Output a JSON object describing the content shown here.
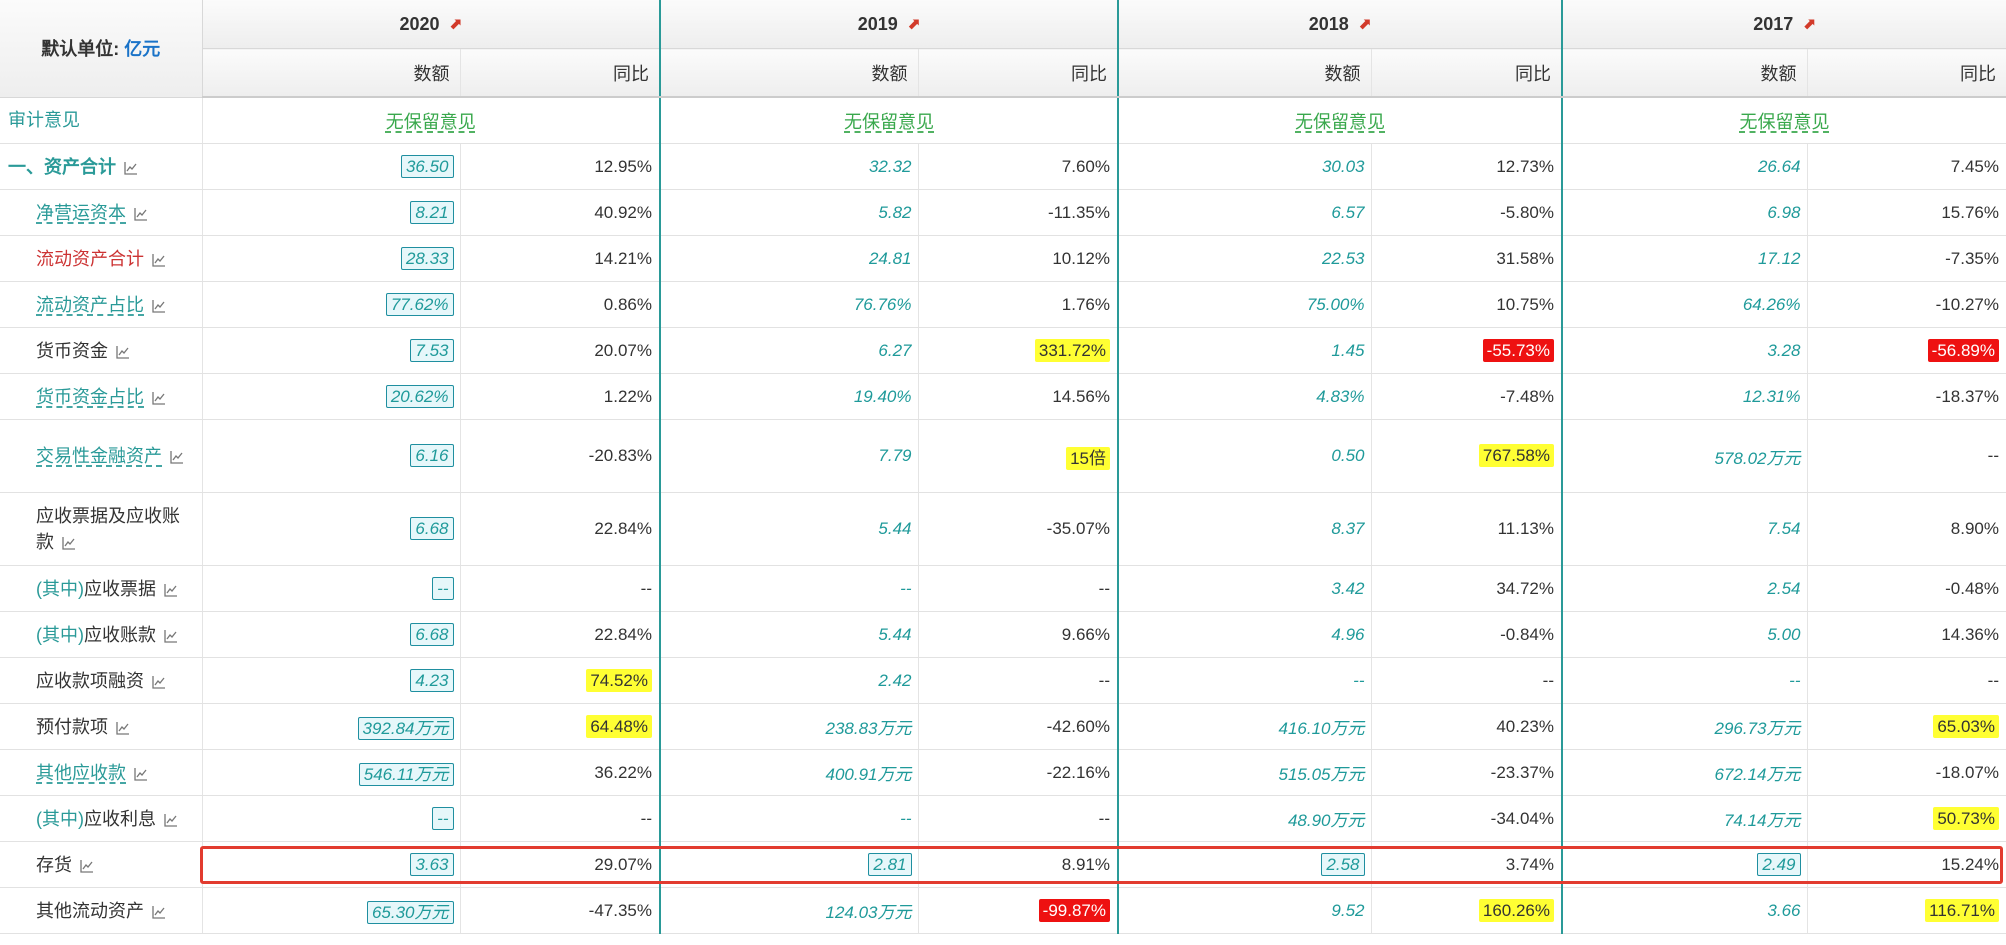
{
  "header": {
    "unit_label": "默认单位:",
    "unit_value": "亿元",
    "years": [
      {
        "year": "2020",
        "amount_label": "数额",
        "yoy_label": "同比"
      },
      {
        "year": "2019",
        "amount_label": "数额",
        "yoy_label": "同比"
      },
      {
        "year": "2018",
        "amount_label": "数额",
        "yoy_label": "同比"
      },
      {
        "year": "2017",
        "amount_label": "数额",
        "yoy_label": "同比"
      }
    ]
  },
  "audit_row": {
    "label": "审计意见",
    "opinions": [
      "无保留意见",
      "无保留意见",
      "无保留意见",
      "无保留意见"
    ]
  },
  "rows": [
    {
      "name": "total-assets",
      "prefix": "",
      "label": "一、资产合计",
      "style": "bold",
      "cells": [
        [
          "36.50",
          "12.95%"
        ],
        [
          "32.32",
          "7.60%"
        ],
        [
          "30.03",
          "12.73%"
        ],
        [
          "26.64",
          "7.45%"
        ]
      ]
    },
    {
      "name": "net-working-capital",
      "prefix": "",
      "label": "净营运资本",
      "style": "link",
      "cells": [
        [
          "8.21",
          "40.92%"
        ],
        [
          "5.82",
          "-11.35%"
        ],
        [
          "6.57",
          "-5.80%"
        ],
        [
          "6.98",
          "15.76%"
        ]
      ]
    },
    {
      "name": "total-current-assets",
      "prefix": "",
      "label": "流动资产合计",
      "style": "red",
      "cells": [
        [
          "28.33",
          "14.21%"
        ],
        [
          "24.81",
          "10.12%"
        ],
        [
          "22.53",
          "31.58%"
        ],
        [
          "17.12",
          "-7.35%"
        ]
      ]
    },
    {
      "name": "current-assets-ratio",
      "prefix": "",
      "label": "流动资产占比",
      "style": "link",
      "cells": [
        [
          "77.62%",
          "0.86%"
        ],
        [
          "76.76%",
          "1.76%"
        ],
        [
          "75.00%",
          "10.75%"
        ],
        [
          "64.26%",
          "-10.27%"
        ]
      ]
    },
    {
      "name": "cash",
      "prefix": "",
      "label": "货币资金",
      "style": "plain",
      "cells": [
        [
          "7.53",
          "20.07%"
        ],
        [
          "6.27",
          "331.72%"
        ],
        [
          "1.45",
          "-55.73%"
        ],
        [
          "3.28",
          "-56.89%"
        ]
      ]
    },
    {
      "name": "cash-ratio",
      "prefix": "",
      "label": "货币资金占比",
      "style": "link",
      "cells": [
        [
          "20.62%",
          "1.22%"
        ],
        [
          "19.40%",
          "14.56%"
        ],
        [
          "4.83%",
          "-7.48%"
        ],
        [
          "12.31%",
          "-18.37%"
        ]
      ]
    },
    {
      "name": "trading-financial-assets",
      "prefix": "",
      "label": "交易性金融资产",
      "style": "link",
      "tall": true,
      "cells": [
        [
          "6.16",
          "-20.83%"
        ],
        [
          "7.79",
          "15倍"
        ],
        [
          "0.50",
          "767.58%"
        ],
        [
          "578.02万元",
          "--"
        ]
      ]
    },
    {
      "name": "notes-and-accounts-receivable",
      "prefix": "",
      "label": "应收票据及应收账款",
      "style": "plain",
      "tall": true,
      "cells": [
        [
          "6.68",
          "22.84%"
        ],
        [
          "5.44",
          "-35.07%"
        ],
        [
          "8.37",
          "11.13%"
        ],
        [
          "7.54",
          "8.90%"
        ]
      ]
    },
    {
      "name": "notes-receivable",
      "prefix": "(其中)",
      "label": "应收票据",
      "style": "plain",
      "cells": [
        [
          "--",
          "--"
        ],
        [
          "--",
          "--"
        ],
        [
          "3.42",
          "34.72%"
        ],
        [
          "2.54",
          "-0.48%"
        ]
      ]
    },
    {
      "name": "accounts-receivable",
      "prefix": "(其中)",
      "label": "应收账款",
      "style": "plain",
      "cells": [
        [
          "6.68",
          "22.84%"
        ],
        [
          "5.44",
          "9.66%"
        ],
        [
          "4.96",
          "-0.84%"
        ],
        [
          "5.00",
          "14.36%"
        ]
      ]
    },
    {
      "name": "receivables-financing",
      "prefix": "",
      "label": "应收款项融资",
      "style": "plain",
      "cells": [
        [
          "4.23",
          "74.52%"
        ],
        [
          "2.42",
          "--"
        ],
        [
          "--",
          "--"
        ],
        [
          "--",
          "--"
        ]
      ]
    },
    {
      "name": "prepayments",
      "prefix": "",
      "label": "预付款项",
      "style": "plain",
      "cells": [
        [
          "392.84万元",
          "64.48%"
        ],
        [
          "238.83万元",
          "-42.60%"
        ],
        [
          "416.10万元",
          "40.23%"
        ],
        [
          "296.73万元",
          "65.03%"
        ]
      ]
    },
    {
      "name": "other-receivables",
      "prefix": "",
      "label": "其他应收款",
      "style": "link",
      "cells": [
        [
          "546.11万元",
          "36.22%"
        ],
        [
          "400.91万元",
          "-22.16%"
        ],
        [
          "515.05万元",
          "-23.37%"
        ],
        [
          "672.14万元",
          "-18.07%"
        ]
      ]
    },
    {
      "name": "interest-receivable",
      "prefix": "(其中)",
      "label": "应收利息",
      "style": "plain",
      "cells": [
        [
          "--",
          "--"
        ],
        [
          "--",
          "--"
        ],
        [
          "48.90万元",
          "-34.04%"
        ],
        [
          "74.14万元",
          "50.73%"
        ]
      ]
    },
    {
      "name": "inventory",
      "prefix": "",
      "label": "存货",
      "style": "plain",
      "cells": [
        [
          "3.63",
          "29.07%"
        ],
        [
          "2.81",
          "8.91%"
        ],
        [
          "2.58",
          "3.74%"
        ],
        [
          "2.49",
          "15.24%"
        ]
      ]
    },
    {
      "name": "other-current-assets",
      "prefix": "",
      "label": "其他流动资产",
      "style": "plain",
      "cells": [
        [
          "65.30万元",
          "-47.35%"
        ],
        [
          "124.03万元",
          "-99.87%"
        ],
        [
          "9.52",
          "160.26%"
        ],
        [
          "3.66",
          "116.71%"
        ]
      ]
    }
  ],
  "highlights": {
    "yellow": [
      [
        "cash",
        1
      ],
      [
        "trading-financial-assets",
        1
      ],
      [
        "trading-financial-assets",
        2
      ],
      [
        "receivables-financing",
        0
      ],
      [
        "prepayments",
        0
      ],
      [
        "prepayments",
        3
      ],
      [
        "interest-receivable",
        3
      ],
      [
        "other-current-assets",
        2
      ],
      [
        "other-current-assets",
        3
      ]
    ],
    "red": [
      [
        "cash",
        2
      ],
      [
        "cash",
        3
      ],
      [
        "other-current-assets",
        1
      ]
    ]
  },
  "boxed_values": {
    "first_column_all": true,
    "inventory_all_years": true
  },
  "selected_row": "inventory",
  "colors": {
    "accent_teal": "#2a9a98",
    "value_teal": "#1f9a9a",
    "highlight_yellow": "#ffff33",
    "highlight_red": "#ee1111",
    "selection_frame": "#e23b2f",
    "opinion_green": "#39a84c",
    "unit_blue": "#1a73c8"
  },
  "icons": {
    "year_header": "pdf-icon",
    "row_label": "trend-chart-icon"
  }
}
